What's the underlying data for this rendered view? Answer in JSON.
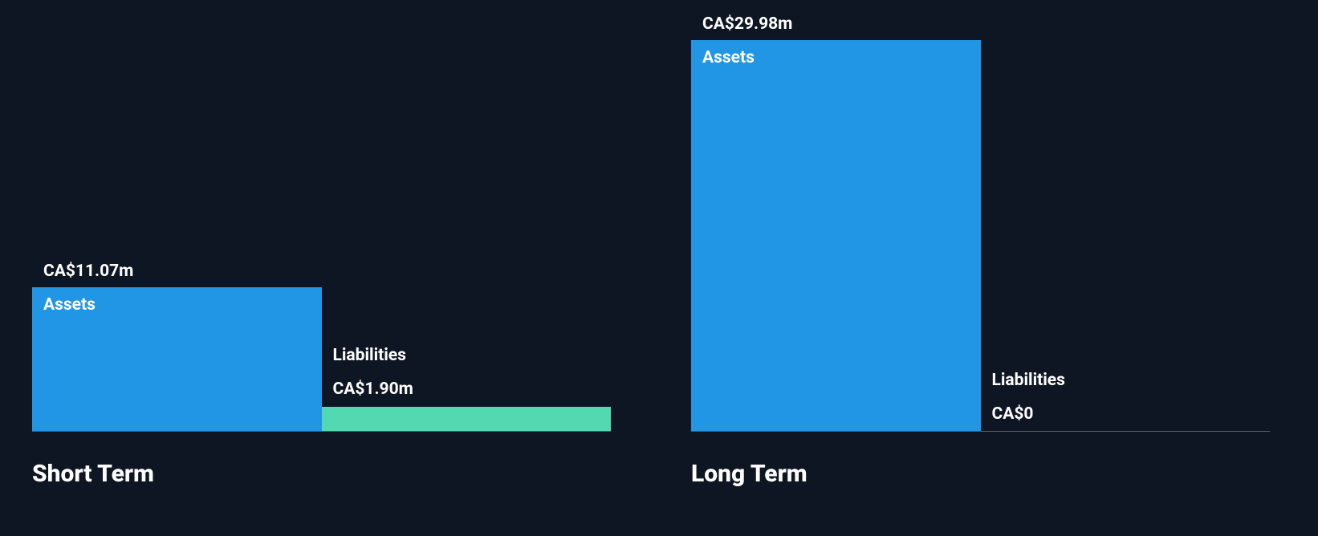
{
  "chart": {
    "type": "bar",
    "background_color": "#0f1623",
    "axis_color": "#5a6270",
    "y_max": 29.98,
    "title_fontsize": 30,
    "label_fontsize": 21,
    "value_fontsize": 21,
    "panels": [
      {
        "title": "Short Term",
        "bars": [
          {
            "name": "Assets",
            "value": 11.07,
            "value_label": "CA$11.07m",
            "color": "#2196e4",
            "label_inside": true
          },
          {
            "name": "Liabilities",
            "value": 1.9,
            "value_label": "CA$1.90m",
            "color": "#53d9b1",
            "label_inside": false
          }
        ]
      },
      {
        "title": "Long Term",
        "bars": [
          {
            "name": "Assets",
            "value": 29.98,
            "value_label": "CA$29.98m",
            "color": "#2196e4",
            "label_inside": true
          },
          {
            "name": "Liabilities",
            "value": 0,
            "value_label": "CA$0",
            "color": "#53d9b1",
            "label_inside": false
          }
        ]
      }
    ]
  }
}
